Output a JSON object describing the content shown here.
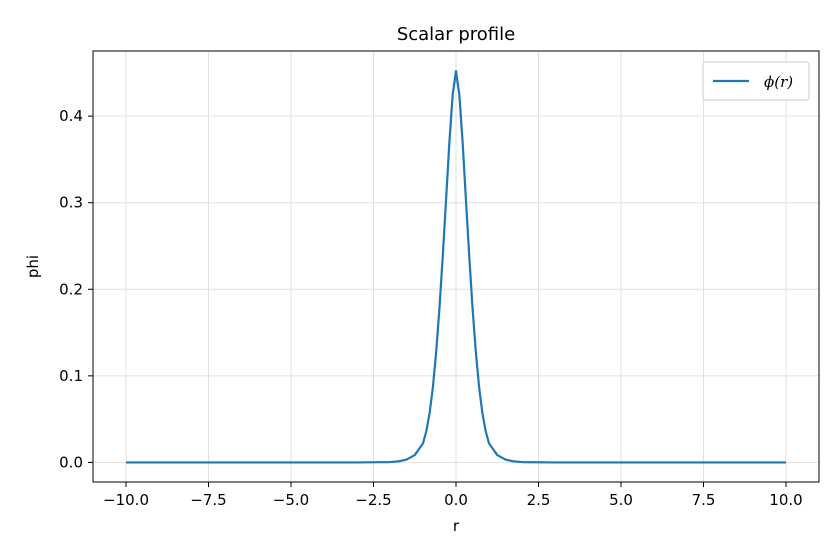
{
  "chart_data": {
    "type": "line",
    "title": "Scalar profile",
    "xlabel": "r",
    "ylabel": "phi",
    "xlim": [
      -11.0,
      11.0
    ],
    "ylim": [
      -0.0226,
      0.4752
    ],
    "xticks": [
      -10.0,
      -7.5,
      -5.0,
      -2.5,
      0.0,
      2.5,
      5.0,
      7.5,
      10.0
    ],
    "xtick_labels": [
      "−10.0",
      "−7.5",
      "−5.0",
      "−2.5",
      "0.0",
      "2.5",
      "5.0",
      "7.5",
      "10.0"
    ],
    "yticks": [
      0.0,
      0.1,
      0.2,
      0.3,
      0.4
    ],
    "ytick_labels": [
      "0.0",
      "0.1",
      "0.2",
      "0.3",
      "0.4"
    ],
    "grid": true,
    "legend_position": "top-right",
    "series": [
      {
        "name": "ϕ(r)",
        "color": "#1f77b4",
        "x": [
          -10.0,
          -3.0,
          -2.0,
          -1.75,
          -1.5,
          -1.25,
          -1.0,
          -0.9,
          -0.8,
          -0.7,
          -0.6,
          -0.5,
          -0.4,
          -0.3,
          -0.2,
          -0.1,
          0.0,
          0.1,
          0.2,
          0.3,
          0.4,
          0.5,
          0.6,
          0.7,
          0.8,
          0.9,
          1.0,
          1.25,
          1.5,
          1.75,
          2.0,
          3.0,
          10.0
        ],
        "y": [
          0.0,
          0.0,
          0.0004,
          0.0012,
          0.0033,
          0.0085,
          0.022,
          0.036,
          0.057,
          0.087,
          0.128,
          0.179,
          0.239,
          0.304,
          0.37,
          0.425,
          0.452,
          0.425,
          0.37,
          0.304,
          0.239,
          0.179,
          0.128,
          0.087,
          0.057,
          0.036,
          0.022,
          0.0085,
          0.0033,
          0.0012,
          0.0004,
          0.0,
          0.0
        ]
      }
    ]
  }
}
